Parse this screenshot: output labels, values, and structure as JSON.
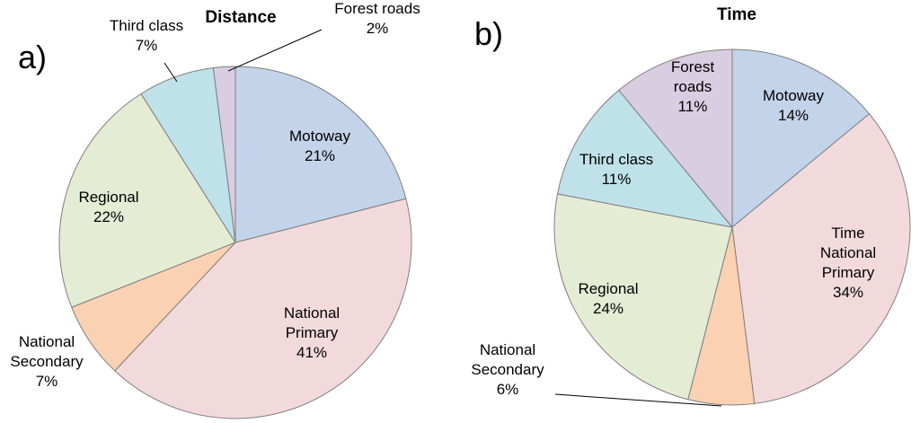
{
  "chart_data": [
    {
      "type": "pie",
      "panel": "a)",
      "title": "Distance",
      "slices": [
        {
          "label": [
            "Motoway"
          ],
          "percent": "21%",
          "value": 21,
          "color": "#c3d3e9"
        },
        {
          "label": [
            "National",
            "Primary"
          ],
          "percent": "41%",
          "value": 41,
          "color": "#f2dadc"
        },
        {
          "label": [
            "National",
            "Secondary"
          ],
          "percent": "7%",
          "value": 7,
          "color": "#fad1b2"
        },
        {
          "label": [
            "Regional"
          ],
          "percent": "22%",
          "value": 22,
          "color": "#e5ecd4"
        },
        {
          "label": [
            "Third class"
          ],
          "percent": "7%",
          "value": 7,
          "color": "#bfe1ea"
        },
        {
          "label": [
            "Forest roads"
          ],
          "percent": "2%",
          "value": 2,
          "color": "#d9cde1"
        }
      ]
    },
    {
      "type": "pie",
      "panel": "b)",
      "title": "Time",
      "slices": [
        {
          "label": [
            "Motoway"
          ],
          "percent": "14%",
          "value": 14,
          "color": "#c3d3e9"
        },
        {
          "label": [
            "Time",
            "National",
            "Primary"
          ],
          "percent": "34%",
          "value": 34,
          "color": "#f2dadc"
        },
        {
          "label": [
            "National",
            "Secondary"
          ],
          "percent": "6%",
          "value": 6,
          "color": "#fad1b2"
        },
        {
          "label": [
            "Regional"
          ],
          "percent": "24%",
          "value": 24,
          "color": "#e5ecd4"
        },
        {
          "label": [
            "Third class"
          ],
          "percent": "11%",
          "value": 11,
          "color": "#bfe1ea"
        },
        {
          "label": [
            "Forest",
            "roads"
          ],
          "percent": "11%",
          "value": 11,
          "color": "#d9cde1"
        }
      ]
    }
  ]
}
